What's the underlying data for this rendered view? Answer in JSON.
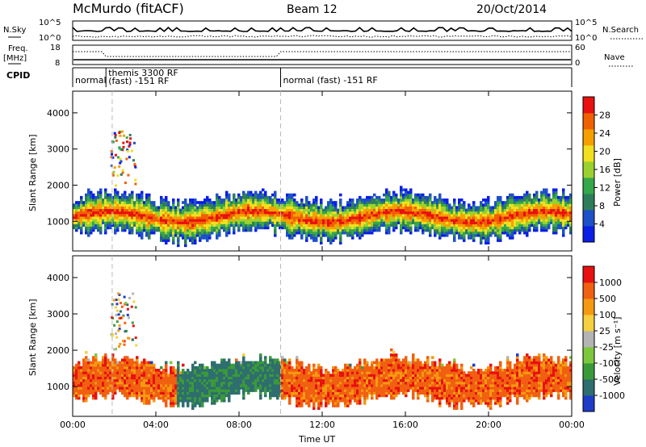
{
  "header": {
    "station": "McMurdo (fitACF)",
    "beam": "Beam 12",
    "date": "20/Oct/2014"
  },
  "top_panels": {
    "nsky_label": "N.Sky",
    "nsky_ticks": [
      "10^5",
      "10^0"
    ],
    "nsearch_label": "N.Search",
    "nsearch_ticks": [
      "10^5",
      "10^0"
    ],
    "freq_label_line1": "Freq.",
    "freq_label_line2": "[MHz]",
    "freq_ticks": [
      "18",
      "8"
    ],
    "nave_label": "Nave",
    "nave_ticks": [
      "60",
      "0"
    ],
    "cpid_label": "CPID",
    "cpid_segments": [
      {
        "label": "normal",
        "label2": "",
        "start_hour": 0,
        "end_hour": 1.6
      },
      {
        "label": "themis 3300 RF",
        "label2": "(fast) -151 RF",
        "start_hour": 1.6,
        "end_hour": 10.0
      },
      {
        "label": "normal (fast) -151 RF",
        "label2": "",
        "start_hour": 10.0,
        "end_hour": 24
      }
    ]
  },
  "chart_data": [
    {
      "type": "heatmap",
      "name": "power",
      "xlabel": "",
      "ylabel": "Slant Range [km]",
      "xlim": [
        0,
        24
      ],
      "ylim": [
        180,
        4600
      ],
      "yticks": [
        1000,
        2000,
        3000,
        4000
      ],
      "colorbar_label": "Power [dB]",
      "colorbar_ticks": [
        "28",
        "24",
        "20",
        "16",
        "12",
        "8",
        "4"
      ],
      "colorbar_colors": [
        "#0a1ee6",
        "#1e50c8",
        "#2e7d5a",
        "#35a84a",
        "#9bd12e",
        "#f0e020",
        "#f5a000",
        "#f06000",
        "#e81010"
      ],
      "dominant_echo_range_km": [
        500,
        1700
      ]
    },
    {
      "type": "heatmap",
      "name": "velocity",
      "xlabel": "Time UT",
      "ylabel": "Slant Range [km]",
      "xlim": [
        0,
        24
      ],
      "ylim": [
        180,
        4600
      ],
      "yticks": [
        1000,
        2000,
        3000,
        4000
      ],
      "xticks": [
        "00:00",
        "04:00",
        "08:00",
        "12:00",
        "16:00",
        "20:00",
        "00:00"
      ],
      "colorbar_label": "Velocity [m s⁻¹]",
      "colorbar_ticks": [
        "1000",
        "500",
        "100",
        "25",
        "-25",
        "-100",
        "-500",
        "-1000"
      ],
      "colorbar_colors": [
        "#1e3cc8",
        "#2e6e6e",
        "#3a9a3a",
        "#7cc83c",
        "#b4b4b4",
        "#f5d040",
        "#f59a10",
        "#f06010",
        "#e81010"
      ],
      "dominant_echo_range_km": [
        500,
        1700
      ]
    }
  ]
}
